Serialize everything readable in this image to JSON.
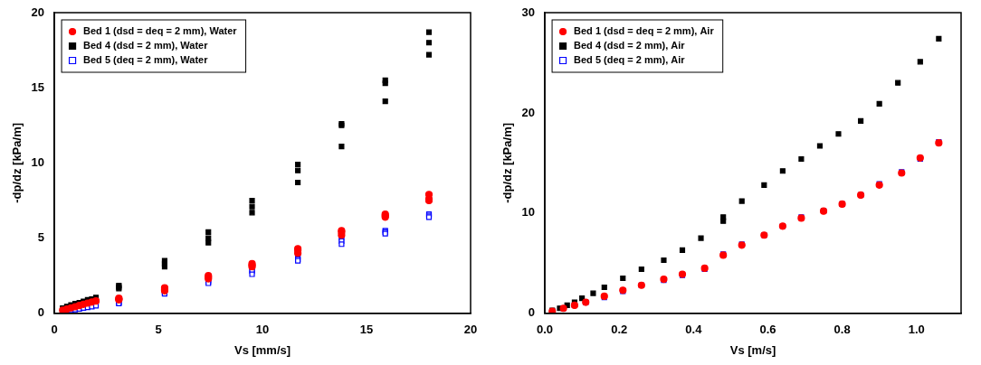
{
  "chart_data": [
    {
      "type": "scatter",
      "x_label": "Vs [mm/s]",
      "y_label": "-dp/dz [kPa/m]",
      "xlim": [
        0,
        20
      ],
      "xticks": [
        0,
        5,
        10,
        15,
        20
      ],
      "ylim": [
        0,
        20
      ],
      "yticks": [
        0,
        5,
        10,
        15,
        20
      ],
      "grid": false,
      "legend": "upper left",
      "x": [
        0.4,
        0.6,
        0.8,
        1.0,
        1.2,
        1.4,
        1.6,
        1.8,
        2.0,
        3.1,
        3.1,
        3.1,
        5.3,
        5.3,
        5.3,
        7.4,
        7.4,
        7.4,
        9.5,
        9.5,
        9.5,
        11.7,
        11.7,
        11.7,
        13.8,
        13.8,
        13.8,
        15.9,
        15.9,
        15.9,
        18.0,
        18.0,
        18.0
      ],
      "series": [
        {
          "name": "Bed 1 (dsd = deq = 2 mm), Water",
          "color": "#ff0000",
          "marker": "circle",
          "values": [
            0.2,
            0.28,
            0.36,
            0.44,
            0.52,
            0.6,
            0.68,
            0.75,
            0.82,
            1.0,
            0.95,
            0.9,
            1.7,
            1.6,
            1.5,
            2.5,
            2.4,
            2.3,
            3.3,
            3.2,
            3.1,
            4.3,
            4.2,
            4.0,
            5.5,
            5.4,
            5.2,
            6.6,
            6.5,
            6.4,
            7.9,
            7.6,
            7.5
          ]
        },
        {
          "name": "Bed 4 (dsd = 2 mm), Water",
          "color": "#000000",
          "marker": "square",
          "values": [
            0.35,
            0.45,
            0.55,
            0.65,
            0.7,
            0.8,
            0.9,
            0.95,
            1.05,
            1.85,
            1.75,
            1.65,
            3.5,
            3.3,
            3.1,
            5.4,
            5.0,
            4.7,
            7.5,
            7.1,
            6.7,
            9.9,
            9.5,
            8.7,
            12.6,
            12.5,
            11.1,
            15.5,
            15.3,
            14.1,
            18.7,
            18.0,
            17.2
          ]
        },
        {
          "name": "Bed 5 (deq = 2 mm), Water",
          "color": "#0000ff",
          "marker": "open_square",
          "values": [
            0.1,
            0.15,
            0.2,
            0.25,
            0.3,
            0.35,
            0.4,
            0.45,
            0.5,
            0.75,
            0.7,
            0.65,
            1.45,
            1.35,
            1.3,
            2.2,
            2.1,
            2.0,
            2.9,
            2.8,
            2.6,
            3.8,
            3.6,
            3.5,
            5.0,
            4.8,
            4.6,
            5.5,
            5.4,
            5.3,
            6.6,
            6.5,
            6.4
          ]
        }
      ]
    },
    {
      "type": "scatter",
      "x_label": "Vs [m/s]",
      "y_label": "-dp/dz [kPa/m]",
      "xlim": [
        0,
        1.12
      ],
      "xticks": [
        {
          "value": 0,
          "label": "0.0"
        },
        0.2,
        0.4,
        0.6,
        0.8,
        {
          "value": 1,
          "label": "1.0"
        }
      ],
      "ylim": [
        0,
        30
      ],
      "yticks": [
        0,
        10,
        20,
        30
      ],
      "grid": false,
      "legend": "upper left",
      "series": [
        {
          "name": "Bed 1 (dsd = deq = 2 mm), Air",
          "color": "#ff0000",
          "marker": "circle",
          "x": [
            0.02,
            0.05,
            0.08,
            0.11,
            0.16,
            0.21,
            0.26,
            0.32,
            0.37,
            0.43,
            0.48,
            0.53,
            0.59,
            0.64,
            0.69,
            0.75,
            0.8,
            0.85,
            0.9,
            0.96,
            1.01,
            1.06
          ],
          "values": [
            0.2,
            0.5,
            0.8,
            1.1,
            1.7,
            2.3,
            2.8,
            3.4,
            3.9,
            4.5,
            5.8,
            6.8,
            7.8,
            8.7,
            9.5,
            10.2,
            10.9,
            11.8,
            12.8,
            14.0,
            15.5,
            17.0
          ]
        },
        {
          "name": "Bed 4 (dsd = 2 mm), Air",
          "color": "#000000",
          "marker": "square",
          "x": [
            0.02,
            0.04,
            0.06,
            0.08,
            0.1,
            0.13,
            0.16,
            0.21,
            0.26,
            0.32,
            0.37,
            0.42,
            0.48,
            0.48,
            0.53,
            0.59,
            0.64,
            0.69,
            0.74,
            0.79,
            0.85,
            0.9,
            0.95,
            1.01,
            1.06
          ],
          "values": [
            0.3,
            0.5,
            0.8,
            1.1,
            1.5,
            2.0,
            2.6,
            3.5,
            4.4,
            5.3,
            6.3,
            7.5,
            9.2,
            9.6,
            11.2,
            12.8,
            14.2,
            15.4,
            16.7,
            17.9,
            19.2,
            20.9,
            23.0,
            25.1,
            27.4
          ]
        },
        {
          "name": "Bed 5 (deq = 2 mm), Air",
          "color": "#0000ff",
          "marker": "open_square",
          "x": [
            0.02,
            0.05,
            0.08,
            0.11,
            0.16,
            0.21,
            0.26,
            0.32,
            0.37,
            0.43,
            0.48,
            0.53,
            0.59,
            0.64,
            0.69,
            0.75,
            0.8,
            0.85,
            0.9,
            0.96,
            1.01,
            1.06
          ],
          "values": [
            0.2,
            0.5,
            0.8,
            1.1,
            1.6,
            2.2,
            2.8,
            3.3,
            3.8,
            4.4,
            5.9,
            6.9,
            7.8,
            8.7,
            9.6,
            10.2,
            10.9,
            11.8,
            12.9,
            14.1,
            15.4,
            17.1
          ]
        }
      ]
    }
  ]
}
